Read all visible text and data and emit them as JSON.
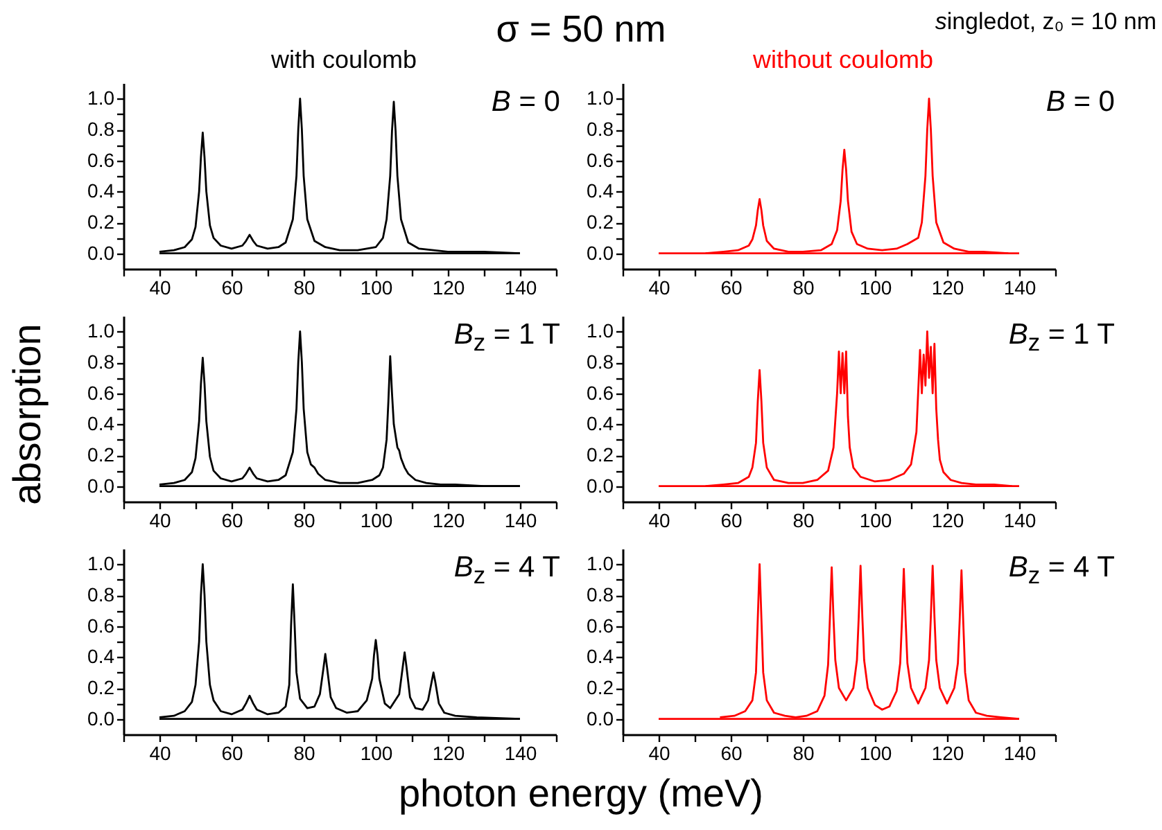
{
  "chart_data": [
    {
      "type": "line",
      "title": "σ = 50 nm",
      "subtitle": "with coulomb",
      "annotations": [
        "B = 0"
      ],
      "xlim": [
        30,
        150
      ],
      "xticks": [
        {
          "value": 30,
          "label": null
        },
        40,
        {
          "value": 50,
          "label": null
        },
        60,
        {
          "value": 70,
          "label": null
        },
        80,
        {
          "value": 90,
          "label": null
        },
        100,
        {
          "value": 110,
          "label": null
        },
        120,
        {
          "value": 130,
          "label": null
        },
        140,
        {
          "value": 150,
          "label": null
        }
      ],
      "ylim": [
        -0.1,
        1.1
      ],
      "yticks": [
        {
          "value": 0,
          "label": "0.0"
        },
        {
          "value": 0.1,
          "label": null
        },
        0.2,
        {
          "value": 0.3,
          "label": null
        },
        0.4,
        {
          "value": 0.5,
          "label": null
        },
        0.6,
        {
          "value": 0.7,
          "label": null
        },
        0.8,
        {
          "value": 0.9,
          "label": null
        },
        {
          "value": 1,
          "label": "1.0"
        }
      ],
      "series": [
        {
          "color": "#000000",
          "x": [
            40,
            44,
            47,
            49,
            50,
            51,
            51.5,
            52,
            52.5,
            53,
            54,
            55,
            57,
            60,
            63,
            64,
            65,
            66,
            67,
            70,
            73,
            75,
            77,
            78,
            78.5,
            79,
            79.5,
            80,
            81,
            83,
            86,
            90,
            95,
            100,
            102,
            103,
            104,
            104.5,
            105,
            105.5,
            106,
            107,
            109,
            112,
            116,
            120,
            130,
            140
          ],
          "values": [
            0.01,
            0.02,
            0.04,
            0.09,
            0.17,
            0.4,
            0.62,
            0.78,
            0.62,
            0.4,
            0.18,
            0.1,
            0.05,
            0.03,
            0.05,
            0.08,
            0.12,
            0.08,
            0.05,
            0.03,
            0.04,
            0.07,
            0.22,
            0.5,
            0.8,
            1.0,
            0.8,
            0.5,
            0.22,
            0.08,
            0.04,
            0.02,
            0.02,
            0.04,
            0.1,
            0.22,
            0.5,
            0.79,
            0.98,
            0.79,
            0.5,
            0.22,
            0.07,
            0.03,
            0.02,
            0.01,
            0.01,
            0
          ]
        },
        {
          "color": "#000000",
          "x": [
            40,
            140
          ],
          "values": [
            0,
            0
          ]
        }
      ]
    },
    {
      "type": "line",
      "subtitle": "without coulomb",
      "annotations": [
        "singledot, z₀ = 10 nm",
        "B = 0"
      ],
      "xlim": [
        30,
        150
      ],
      "xticks": [
        {
          "value": 30,
          "label": null
        },
        40,
        {
          "value": 50,
          "label": null
        },
        60,
        {
          "value": 70,
          "label": null
        },
        80,
        {
          "value": 90,
          "label": null
        },
        100,
        {
          "value": 110,
          "label": null
        },
        120,
        {
          "value": 130,
          "label": null
        },
        140,
        {
          "value": 150,
          "label": null
        }
      ],
      "ylim": [
        -0.1,
        1.1
      ],
      "yticks": [
        {
          "value": 0,
          "label": "0.0"
        },
        {
          "value": 0.1,
          "label": null
        },
        0.2,
        {
          "value": 0.3,
          "label": null
        },
        0.4,
        {
          "value": 0.5,
          "label": null
        },
        0.6,
        {
          "value": 0.7,
          "label": null
        },
        0.8,
        {
          "value": 0.9,
          "label": null
        },
        {
          "value": 1,
          "label": "1.0"
        }
      ],
      "series": [
        {
          "color": "#ff0000",
          "x": [
            53,
            58,
            62,
            65,
            66,
            67,
            67.5,
            68,
            68.5,
            69,
            70,
            72,
            76,
            80,
            85,
            88,
            89.5,
            90.5,
            91,
            91.5,
            92,
            92.5,
            93.5,
            95,
            98,
            102,
            106,
            109,
            112,
            113,
            114,
            114.5,
            115,
            115.5,
            116,
            117,
            119,
            122,
            126,
            130,
            137
          ],
          "values": [
            0,
            0.01,
            0.02,
            0.05,
            0.09,
            0.18,
            0.28,
            0.35,
            0.28,
            0.18,
            0.08,
            0.03,
            0.01,
            0.01,
            0.02,
            0.06,
            0.15,
            0.34,
            0.54,
            0.67,
            0.54,
            0.34,
            0.14,
            0.06,
            0.03,
            0.02,
            0.03,
            0.06,
            0.1,
            0.2,
            0.5,
            0.8,
            1.0,
            0.8,
            0.5,
            0.2,
            0.07,
            0.03,
            0.01,
            0.01,
            0
          ]
        },
        {
          "color": "#ff0000",
          "x": [
            40,
            140
          ],
          "values": [
            0,
            0
          ]
        }
      ]
    },
    {
      "type": "line",
      "ylabel": "absorption",
      "annotations": [
        "B$_{z}$ = 1 T"
      ],
      "xlim": [
        30,
        150
      ],
      "xticks": [
        {
          "value": 30,
          "label": null
        },
        40,
        {
          "value": 50,
          "label": null
        },
        60,
        {
          "value": 70,
          "label": null
        },
        80,
        {
          "value": 90,
          "label": null
        },
        100,
        {
          "value": 110,
          "label": null
        },
        120,
        {
          "value": 130,
          "label": null
        },
        140,
        {
          "value": 150,
          "label": null
        }
      ],
      "ylim": [
        -0.1,
        1.1
      ],
      "yticks": [
        {
          "value": 0,
          "label": "0.0"
        },
        {
          "value": 0.1,
          "label": null
        },
        0.2,
        {
          "value": 0.3,
          "label": null
        },
        0.4,
        {
          "value": 0.5,
          "label": null
        },
        0.6,
        {
          "value": 0.7,
          "label": null
        },
        0.8,
        {
          "value": 0.9,
          "label": null
        },
        {
          "value": 1,
          "label": "1.0"
        }
      ],
      "series": [
        {
          "color": "#000000",
          "x": [
            40,
            44,
            47,
            49,
            50,
            51,
            51.5,
            52,
            52.5,
            53,
            54,
            55,
            57,
            60,
            63,
            64,
            65,
            66,
            67,
            70,
            73,
            75,
            77,
            78,
            78.5,
            79,
            79.5,
            80,
            81,
            82,
            83,
            84,
            86,
            90,
            95,
            99,
            101,
            102,
            103,
            103.5,
            104,
            104.5,
            105,
            106,
            106.5,
            107,
            108,
            109,
            111,
            114,
            118,
            122,
            130,
            140
          ],
          "values": [
            0.01,
            0.02,
            0.04,
            0.09,
            0.18,
            0.42,
            0.66,
            0.83,
            0.66,
            0.42,
            0.19,
            0.1,
            0.05,
            0.03,
            0.05,
            0.08,
            0.12,
            0.08,
            0.05,
            0.03,
            0.04,
            0.07,
            0.22,
            0.5,
            0.8,
            1.0,
            0.8,
            0.5,
            0.22,
            0.14,
            0.12,
            0.08,
            0.04,
            0.02,
            0.02,
            0.04,
            0.07,
            0.12,
            0.3,
            0.55,
            0.84,
            0.6,
            0.4,
            0.25,
            0.23,
            0.18,
            0.12,
            0.08,
            0.04,
            0.02,
            0.01,
            0.01,
            0,
            0
          ]
        },
        {
          "color": "#000000",
          "x": [
            40,
            140
          ],
          "values": [
            0,
            0
          ]
        }
      ]
    },
    {
      "type": "line",
      "annotations": [
        "B$_{z}$ = 1 T"
      ],
      "xlim": [
        30,
        150
      ],
      "xticks": [
        {
          "value": 30,
          "label": null
        },
        40,
        {
          "value": 50,
          "label": null
        },
        60,
        {
          "value": 70,
          "label": null
        },
        80,
        {
          "value": 90,
          "label": null
        },
        100,
        {
          "value": 110,
          "label": null
        },
        120,
        {
          "value": 130,
          "label": null
        },
        140,
        {
          "value": 150,
          "label": null
        }
      ],
      "ylim": [
        -0.1,
        1.1
      ],
      "yticks": [
        {
          "value": 0,
          "label": "0.0"
        },
        {
          "value": 0.1,
          "label": null
        },
        0.2,
        {
          "value": 0.3,
          "label": null
        },
        0.4,
        {
          "value": 0.5,
          "label": null
        },
        0.6,
        {
          "value": 0.7,
          "label": null
        },
        0.8,
        {
          "value": 0.9,
          "label": null
        },
        {
          "value": 1,
          "label": "1.0"
        }
      ],
      "series": [
        {
          "color": "#ff0000",
          "x": [
            53,
            58,
            62,
            65,
            66,
            67,
            67.5,
            68,
            68.5,
            69,
            70,
            72,
            76,
            80,
            84,
            87,
            88.5,
            89.5,
            90,
            90.5,
            91,
            91.5,
            92,
            92.5,
            93,
            94,
            96,
            100,
            104,
            108,
            110,
            111.5,
            112.5,
            113,
            113.5,
            114,
            114.5,
            115,
            115.5,
            116,
            116.5,
            117,
            117.5,
            118,
            119,
            121,
            124,
            128,
            133,
            138
          ],
          "values": [
            0,
            0.01,
            0.02,
            0.06,
            0.12,
            0.28,
            0.55,
            0.75,
            0.55,
            0.28,
            0.12,
            0.04,
            0.02,
            0.02,
            0.04,
            0.1,
            0.25,
            0.6,
            0.87,
            0.6,
            0.86,
            0.6,
            0.87,
            0.45,
            0.25,
            0.12,
            0.06,
            0.03,
            0.04,
            0.08,
            0.14,
            0.35,
            0.88,
            0.6,
            0.85,
            0.65,
            1.0,
            0.7,
            0.9,
            0.6,
            0.92,
            0.5,
            0.3,
            0.17,
            0.09,
            0.04,
            0.02,
            0.01,
            0.01,
            0
          ]
        },
        {
          "color": "#ff0000",
          "x": [
            40,
            140
          ],
          "values": [
            0,
            0
          ]
        }
      ]
    },
    {
      "type": "line",
      "xlabel": "photon energy (meV)",
      "annotations": [
        "B$_{z}$ = 4 T"
      ],
      "xlim": [
        30,
        150
      ],
      "xticks": [
        {
          "value": 30,
          "label": null
        },
        40,
        {
          "value": 50,
          "label": null
        },
        60,
        {
          "value": 70,
          "label": null
        },
        80,
        {
          "value": 90,
          "label": null
        },
        100,
        {
          "value": 110,
          "label": null
        },
        120,
        {
          "value": 130,
          "label": null
        },
        140,
        {
          "value": 150,
          "label": null
        }
      ],
      "ylim": [
        -0.1,
        1.1
      ],
      "yticks": [
        {
          "value": 0,
          "label": "0.0"
        },
        {
          "value": 0.1,
          "label": null
        },
        0.2,
        {
          "value": 0.3,
          "label": null
        },
        0.4,
        {
          "value": 0.5,
          "label": null
        },
        0.6,
        {
          "value": 0.7,
          "label": null
        },
        0.8,
        {
          "value": 0.9,
          "label": null
        },
        {
          "value": 1,
          "label": "1.0"
        }
      ],
      "series": [
        {
          "color": "#000000",
          "x": [
            40,
            44,
            47,
            49,
            50,
            51,
            51.5,
            52,
            52.5,
            53,
            54,
            55,
            57,
            60,
            63,
            64,
            65,
            66,
            67,
            70,
            73,
            75,
            76,
            76.5,
            77,
            77.5,
            78,
            79,
            81,
            83,
            84.5,
            85.5,
            86,
            86.5,
            87.5,
            89,
            92,
            95,
            97.5,
            99,
            99.5,
            100,
            100.5,
            101,
            102.5,
            104,
            106.5,
            107.5,
            108,
            108.5,
            109.5,
            111,
            113,
            114.5,
            115.5,
            116,
            116.5,
            117.5,
            119,
            122,
            128,
            140
          ],
          "values": [
            0.01,
            0.02,
            0.05,
            0.11,
            0.22,
            0.5,
            0.8,
            1.0,
            0.8,
            0.5,
            0.22,
            0.12,
            0.05,
            0.03,
            0.06,
            0.1,
            0.15,
            0.1,
            0.06,
            0.03,
            0.04,
            0.08,
            0.22,
            0.6,
            0.87,
            0.6,
            0.3,
            0.13,
            0.07,
            0.08,
            0.16,
            0.33,
            0.42,
            0.33,
            0.14,
            0.07,
            0.04,
            0.05,
            0.12,
            0.26,
            0.41,
            0.51,
            0.41,
            0.26,
            0.1,
            0.07,
            0.16,
            0.34,
            0.43,
            0.34,
            0.14,
            0.07,
            0.06,
            0.12,
            0.24,
            0.3,
            0.24,
            0.1,
            0.04,
            0.02,
            0.01,
            0
          ]
        },
        {
          "color": "#000000",
          "x": [
            40,
            140
          ],
          "values": [
            0,
            0
          ]
        }
      ]
    },
    {
      "type": "line",
      "annotations": [
        "B$_{z}$ = 4 T"
      ],
      "xlim": [
        30,
        150
      ],
      "xticks": [
        {
          "value": 30,
          "label": null
        },
        40,
        {
          "value": 50,
          "label": null
        },
        60,
        {
          "value": 70,
          "label": null
        },
        80,
        {
          "value": 90,
          "label": null
        },
        100,
        {
          "value": 110,
          "label": null
        },
        120,
        {
          "value": 130,
          "label": null
        },
        140,
        {
          "value": 150,
          "label": null
        }
      ],
      "ylim": [
        -0.1,
        1.1
      ],
      "yticks": [
        {
          "value": 0,
          "label": "0.0"
        },
        {
          "value": 0.1,
          "label": null
        },
        0.2,
        {
          "value": 0.3,
          "label": null
        },
        0.4,
        {
          "value": 0.5,
          "label": null
        },
        0.6,
        {
          "value": 0.7,
          "label": null
        },
        0.8,
        {
          "value": 0.9,
          "label": null
        },
        {
          "value": 1,
          "label": "1.0"
        }
      ],
      "series": [
        {
          "color": "#ff0000",
          "x": [
            57,
            61,
            64,
            66,
            67,
            67.5,
            68,
            68.5,
            69,
            70,
            72,
            75,
            78,
            81,
            84,
            86,
            87,
            87.5,
            88,
            88.5,
            89,
            90,
            92,
            94,
            95,
            95.5,
            96,
            96.5,
            97,
            98,
            100,
            102,
            104,
            106,
            107,
            107.5,
            108,
            108.5,
            109,
            110,
            112,
            114,
            115,
            115.5,
            116,
            116.5,
            117,
            118,
            120,
            122,
            123,
            123.5,
            124,
            124.5,
            125,
            126,
            128,
            131,
            135,
            140
          ],
          "values": [
            0.01,
            0.02,
            0.05,
            0.12,
            0.3,
            0.65,
            1.0,
            0.65,
            0.3,
            0.12,
            0.04,
            0.02,
            0.01,
            0.02,
            0.05,
            0.15,
            0.35,
            0.65,
            0.98,
            0.65,
            0.38,
            0.2,
            0.12,
            0.2,
            0.38,
            0.66,
            0.99,
            0.66,
            0.38,
            0.2,
            0.09,
            0.06,
            0.08,
            0.18,
            0.36,
            0.64,
            0.97,
            0.64,
            0.36,
            0.2,
            0.1,
            0.2,
            0.38,
            0.66,
            0.99,
            0.66,
            0.38,
            0.2,
            0.1,
            0.2,
            0.36,
            0.64,
            0.96,
            0.62,
            0.3,
            0.12,
            0.04,
            0.02,
            0.01,
            0
          ]
        },
        {
          "color": "#ff0000",
          "x": [
            40,
            140
          ],
          "values": [
            0,
            0
          ]
        }
      ]
    }
  ]
}
